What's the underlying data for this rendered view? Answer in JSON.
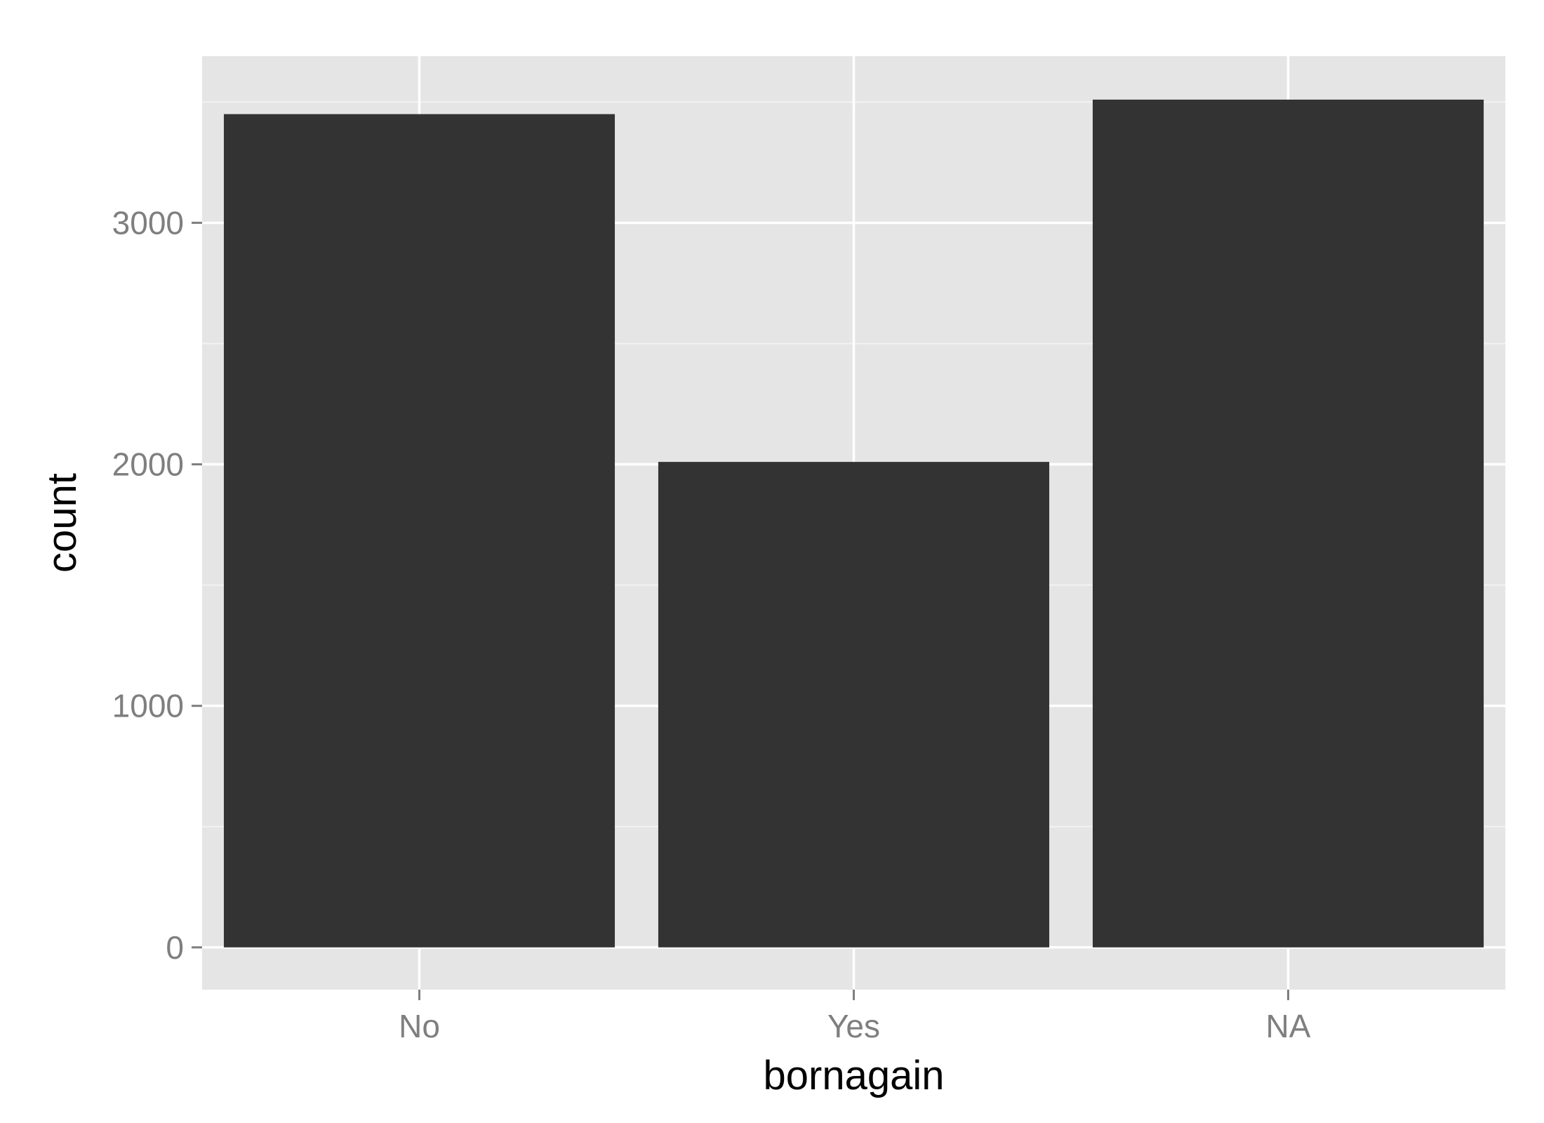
{
  "chart_data": {
    "type": "bar",
    "categories": [
      "No",
      "Yes",
      "NA"
    ],
    "values": [
      3450,
      2010,
      3510
    ],
    "xlabel": "bornagain",
    "ylabel": "count",
    "ylim": [
      -175,
      3690
    ],
    "yticks": [
      0,
      1000,
      2000,
      3000
    ],
    "ytick_labels": [
      "0",
      "1000",
      "2000",
      "3000"
    ],
    "grid": true,
    "legend": "none",
    "colors": {
      "panel_background": "#e5e5e5",
      "grid_major": "#ffffff",
      "grid_minor": "#f2f2f2",
      "bar_fill": "#333333",
      "tick_text": "#7f7f7f",
      "tick_mark": "#7f7f7f",
      "axis_title": "#000000"
    }
  }
}
